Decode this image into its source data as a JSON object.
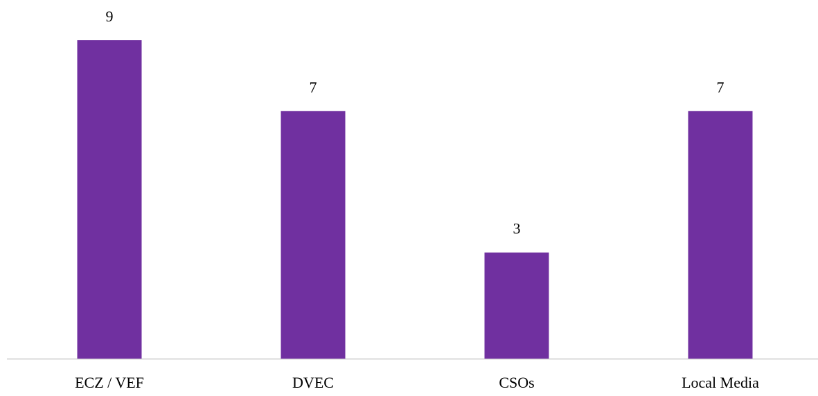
{
  "chart_data": {
    "type": "bar",
    "categories": [
      "ECZ / VEF",
      "DVEC",
      "CSOs",
      "Local Media"
    ],
    "values": [
      9,
      7,
      3,
      7
    ],
    "color": "#7030a0",
    "ylim": [
      0,
      10
    ]
  }
}
